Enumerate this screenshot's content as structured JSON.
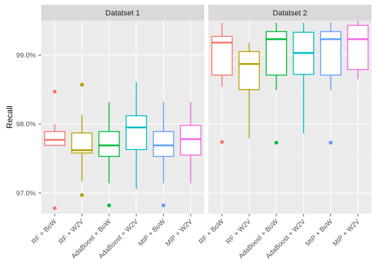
{
  "chart_data": {
    "type": "box",
    "ylabel": "Recall",
    "ylim": [
      96.7,
      99.5
    ],
    "yticks": [
      97.0,
      98.0,
      99.0
    ],
    "ytick_labels": [
      "97.0%",
      "98.0%",
      "99.0%"
    ],
    "grid": true,
    "legend": "none",
    "categories": [
      "RF + BoW",
      "RF + W2V",
      "AdaBoost + BoW",
      "AdaBoost + W2V",
      "MIP + BoW",
      "MIP + W2V"
    ],
    "colors": [
      "#F8766D",
      "#B79F00",
      "#00BA38",
      "#00BFC4",
      "#619CFF",
      "#F564E3"
    ],
    "panels": [
      {
        "title": "Datatset 1",
        "boxes": [
          {
            "min": 97.68,
            "q1": 97.69,
            "median": 97.77,
            "q3": 97.89,
            "max": 98.0,
            "outliers": [
              98.47,
              96.78
            ]
          },
          {
            "min": 97.17,
            "q1": 97.58,
            "median": 97.62,
            "q3": 97.87,
            "max": 98.13,
            "outliers": [
              98.57,
              96.97
            ]
          },
          {
            "min": 97.14,
            "q1": 97.53,
            "median": 97.69,
            "q3": 97.89,
            "max": 98.32,
            "outliers": [
              96.82
            ]
          },
          {
            "min": 97.06,
            "q1": 97.63,
            "median": 97.95,
            "q3": 98.12,
            "max": 98.61,
            "outliers": []
          },
          {
            "min": 97.14,
            "q1": 97.53,
            "median": 97.69,
            "q3": 97.89,
            "max": 98.32,
            "outliers": [
              96.82
            ]
          },
          {
            "min": 97.14,
            "q1": 97.55,
            "median": 97.78,
            "q3": 97.98,
            "max": 98.32,
            "outliers": []
          }
        ]
      },
      {
        "title": "Datatset 2",
        "boxes": [
          {
            "min": 98.54,
            "q1": 98.71,
            "median": 99.18,
            "q3": 99.27,
            "max": 99.47,
            "outliers": [
              97.74
            ]
          },
          {
            "min": 97.79,
            "q1": 98.5,
            "median": 98.87,
            "q3": 99.05,
            "max": 99.18,
            "outliers": []
          },
          {
            "min": 98.49,
            "q1": 98.71,
            "median": 99.23,
            "q3": 99.34,
            "max": 99.47,
            "outliers": [
              97.73
            ]
          },
          {
            "min": 97.86,
            "q1": 98.72,
            "median": 99.03,
            "q3": 99.33,
            "max": 99.47,
            "outliers": []
          },
          {
            "min": 98.49,
            "q1": 98.71,
            "median": 99.23,
            "q3": 99.34,
            "max": 99.47,
            "outliers": [
              97.73
            ]
          },
          {
            "min": 98.65,
            "q1": 98.79,
            "median": 99.23,
            "q3": 99.43,
            "max": 99.5,
            "outliers": []
          }
        ]
      }
    ]
  }
}
